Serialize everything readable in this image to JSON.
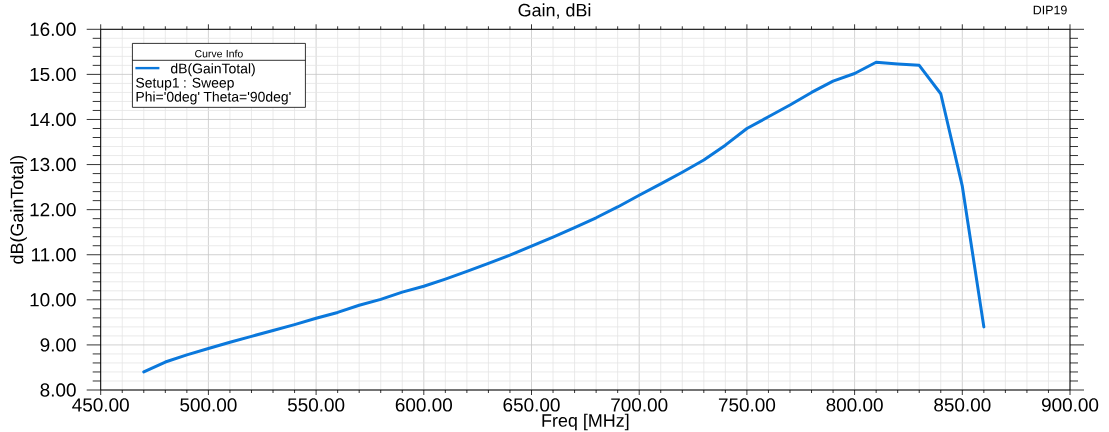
{
  "chart_data": {
    "type": "line",
    "title": "Gain, dBi",
    "xlabel": "Freq [MHz]",
    "ylabel": "dB(GainTotal)",
    "legend_title": "Curve Info",
    "annotations": [
      "DIP19",
      "Setup1 : Sweep",
      "Phi='0deg' Theta='90deg'"
    ],
    "x": [
      470,
      480,
      490,
      500,
      510,
      520,
      530,
      540,
      550,
      560,
      570,
      580,
      590,
      600,
      610,
      620,
      630,
      640,
      650,
      660,
      670,
      680,
      690,
      700,
      710,
      720,
      730,
      740,
      750,
      760,
      770,
      780,
      790,
      800,
      810,
      820,
      830,
      840,
      850,
      860
    ],
    "series": [
      {
        "name": "dB(GainTotal)",
        "color": "#0a78dc",
        "values": [
          8.4,
          8.62,
          8.78,
          8.92,
          9.06,
          9.19,
          9.32,
          9.45,
          9.59,
          9.72,
          9.88,
          10.01,
          10.17,
          10.3,
          10.46,
          10.63,
          10.81,
          10.99,
          11.19,
          11.39,
          11.6,
          11.82,
          12.06,
          12.32,
          12.57,
          12.83,
          13.1,
          13.43,
          13.8,
          14.06,
          14.32,
          14.6,
          14.85,
          15.02,
          15.27,
          15.23,
          15.2,
          14.57,
          12.52,
          9.4
        ]
      }
    ],
    "xlim": [
      450,
      900
    ],
    "ylim": [
      8,
      16
    ],
    "xticks": [
      {
        "value": 450,
        "label": "450.00"
      },
      {
        "value": 500,
        "label": "500.00"
      },
      {
        "value": 550,
        "label": "550.00"
      },
      {
        "value": 600,
        "label": "600.00"
      },
      {
        "value": 650,
        "label": "650.00"
      },
      {
        "value": 700,
        "label": "700.00"
      },
      {
        "value": 750,
        "label": "750.00"
      },
      {
        "value": 800,
        "label": "800.00"
      },
      {
        "value": 850,
        "label": "850.00"
      },
      {
        "value": 900,
        "label": "900.00"
      }
    ],
    "yticks": [
      {
        "value": 8,
        "label": "8.00"
      },
      {
        "value": 9,
        "label": "9.00"
      },
      {
        "value": 10,
        "label": "10.00"
      },
      {
        "value": 11,
        "label": "11.00"
      },
      {
        "value": 12,
        "label": "12.00"
      },
      {
        "value": 13,
        "label": "13.00"
      },
      {
        "value": 14,
        "label": "14.00"
      },
      {
        "value": 15,
        "label": "15.00"
      },
      {
        "value": 16,
        "label": "16.00"
      }
    ],
    "grid": true,
    "legend": "top left",
    "marker": "none",
    "line_style": "solid"
  }
}
